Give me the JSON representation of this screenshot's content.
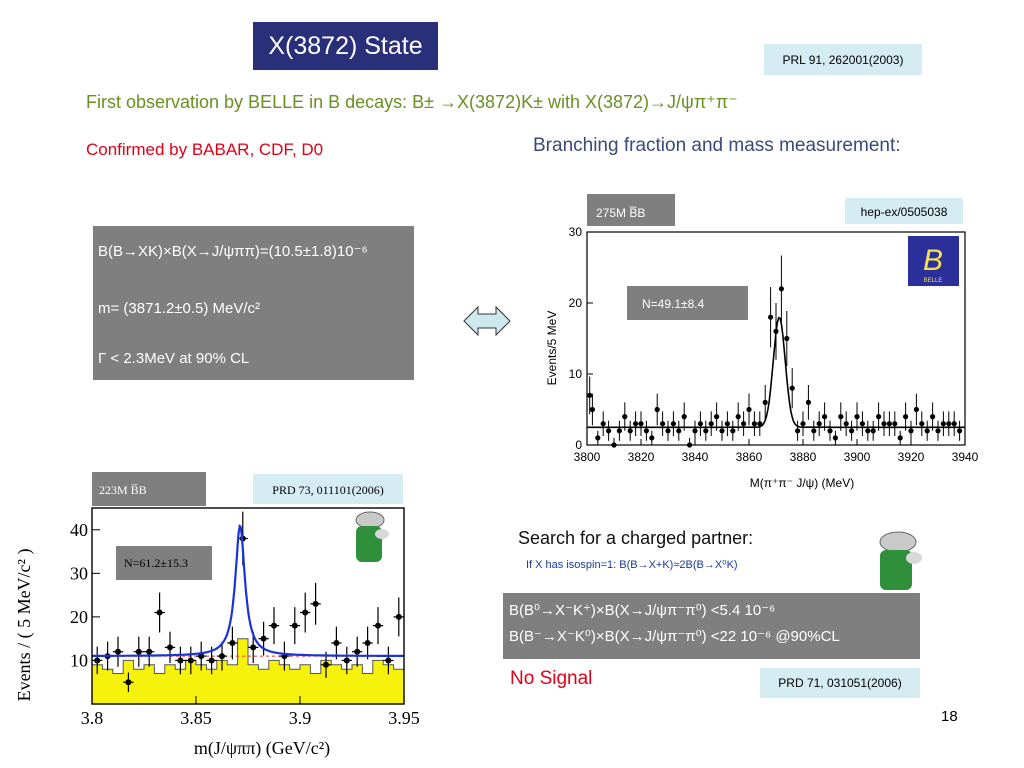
{
  "slide": {
    "title": "X(3872) State",
    "ref_top": "PRL 91, 262001(2003)",
    "observation": "First observation by BELLE in B decays: B± →X(3872)K± with X(3872)→J/ψπ⁺π⁻",
    "confirmed": "Confirmed by BABAR, CDF, D0",
    "branching": "Branching fraction and mass measurement:",
    "results": [
      "B(B→XK)×B(X→J/ψππ)=(10.5±1.8)10⁻⁶",
      "m= (3871.2±0.5) MeV/c²",
      "Γ < 2.3MeV at 90% CL"
    ],
    "search_title": "Search for a charged partner:",
    "search_sub": "If X has isospin=1: B(B→X+K)≈2B(B→X⁰K)",
    "charged_results": [
      "B(B⁰→X⁻K⁺)×B(X→J/ψπ⁻π⁰) <5.4 10⁻⁶",
      "B(B⁻→X⁻K⁰)×B(X→J/ψπ⁻π⁰) <22 10⁻⁶ @90%CL"
    ],
    "no_signal": "No Signal",
    "ref_bottom": "PRD 71, 031051(2006)",
    "page_number": "18",
    "colors": {
      "title_bg": "#2a2f7a",
      "ref_bg": "#d6ecf3",
      "green_text": "#6a8f23",
      "red_text": "#e0001a",
      "gray_box": "#7f7f7f",
      "arrow": "#cde9ee"
    },
    "icons": [
      "double-arrow-icon",
      "belle-logo-icon",
      "babar-elephant-icon"
    ]
  },
  "chart_data": [
    {
      "type": "scatter",
      "experiment_tag": "275M B̅B",
      "ref": "hep-ex/0505038",
      "logo_text": "BELLE",
      "annotation": "N=49.1±8.4",
      "xlabel": "M(π⁺π⁻ J/ψ) (MeV)",
      "ylabel": "Events/5 MeV",
      "xlim": [
        3800,
        3940
      ],
      "ylim": [
        0,
        30
      ],
      "x_ticks": [
        3800,
        3820,
        3840,
        3860,
        3880,
        3900,
        3920,
        3940
      ],
      "y_ticks": [
        0,
        10,
        20,
        30
      ],
      "grid": false,
      "points": [
        [
          3801,
          7
        ],
        [
          3802,
          5
        ],
        [
          3804,
          1
        ],
        [
          3806,
          3
        ],
        [
          3808,
          2
        ],
        [
          3810,
          0
        ],
        [
          3812,
          2
        ],
        [
          3814,
          4
        ],
        [
          3816,
          2
        ],
        [
          3818,
          3
        ],
        [
          3820,
          3
        ],
        [
          3822,
          2
        ],
        [
          3824,
          1
        ],
        [
          3826,
          5
        ],
        [
          3828,
          3
        ],
        [
          3830,
          2
        ],
        [
          3832,
          3
        ],
        [
          3834,
          2
        ],
        [
          3836,
          4
        ],
        [
          3838,
          0
        ],
        [
          3840,
          2
        ],
        [
          3842,
          3
        ],
        [
          3844,
          2
        ],
        [
          3846,
          3
        ],
        [
          3848,
          4
        ],
        [
          3850,
          2
        ],
        [
          3852,
          3
        ],
        [
          3854,
          2
        ],
        [
          3856,
          4
        ],
        [
          3858,
          3
        ],
        [
          3860,
          5
        ],
        [
          3862,
          3
        ],
        [
          3864,
          3
        ],
        [
          3866,
          6
        ],
        [
          3868,
          18
        ],
        [
          3870,
          16
        ],
        [
          3872,
          22
        ],
        [
          3874,
          15
        ],
        [
          3876,
          8
        ],
        [
          3878,
          2
        ],
        [
          3880,
          3
        ],
        [
          3882,
          6
        ],
        [
          3884,
          2
        ],
        [
          3886,
          3
        ],
        [
          3888,
          4
        ],
        [
          3890,
          2
        ],
        [
          3892,
          1
        ],
        [
          3894,
          4
        ],
        [
          3896,
          3
        ],
        [
          3898,
          2
        ],
        [
          3900,
          4
        ],
        [
          3902,
          3
        ],
        [
          3904,
          2
        ],
        [
          3906,
          2
        ],
        [
          3908,
          4
        ],
        [
          3910,
          3
        ],
        [
          3912,
          3
        ],
        [
          3914,
          3
        ],
        [
          3916,
          1
        ],
        [
          3918,
          4
        ],
        [
          3920,
          2
        ],
        [
          3922,
          5
        ],
        [
          3924,
          3
        ],
        [
          3926,
          2
        ],
        [
          3928,
          4
        ],
        [
          3930,
          2
        ],
        [
          3932,
          3
        ],
        [
          3934,
          3
        ],
        [
          3936,
          3
        ],
        [
          3938,
          2
        ]
      ],
      "fit": {
        "background": 2.5,
        "peak_mean": 3871.2,
        "peak_sigma": 2.2,
        "peak_height": 15.5
      }
    },
    {
      "type": "bar",
      "experiment_tag": "223M B̅B",
      "ref": "PRD 73, 011101(2006)",
      "annotation": "N=61.2±15.3",
      "xlabel": "m(J/ψππ) (GeV/c²)",
      "ylabel": "Events / ( 5 MeV/c² )",
      "xlim": [
        3.8,
        3.95
      ],
      "ylim": [
        0,
        45
      ],
      "x_ticks": [
        3.8,
        3.85,
        3.9,
        3.95
      ],
      "x_tick_labels": [
        "3.8",
        "3.85",
        "3.9",
        "3.95"
      ],
      "y_ticks": [
        10,
        20,
        30,
        40
      ],
      "grid": false,
      "bin_edges": [
        3.8,
        3.805,
        3.81,
        3.815,
        3.82,
        3.825,
        3.83,
        3.835,
        3.84,
        3.845,
        3.85,
        3.855,
        3.86,
        3.865,
        3.87,
        3.875,
        3.88,
        3.885,
        3.89,
        3.895,
        3.9,
        3.905,
        3.91,
        3.915,
        3.92,
        3.925,
        3.93,
        3.935,
        3.94,
        3.945,
        3.95
      ],
      "background_histogram": [
        9,
        8,
        7,
        10,
        8,
        9,
        7,
        9,
        8,
        10,
        9,
        8,
        10,
        9,
        15,
        9,
        8,
        10,
        9,
        8,
        9,
        7,
        10,
        9,
        8,
        9,
        7,
        10,
        9,
        8
      ],
      "data_points": [
        [
          3.8025,
          10
        ],
        [
          3.8075,
          11
        ],
        [
          3.8125,
          12
        ],
        [
          3.8175,
          5
        ],
        [
          3.8225,
          12
        ],
        [
          3.8275,
          12
        ],
        [
          3.8325,
          21
        ],
        [
          3.8375,
          13
        ],
        [
          3.8425,
          10
        ],
        [
          3.8475,
          10
        ],
        [
          3.8525,
          11
        ],
        [
          3.8575,
          10
        ],
        [
          3.8625,
          11
        ],
        [
          3.8675,
          14
        ],
        [
          3.8725,
          38
        ],
        [
          3.8775,
          13
        ],
        [
          3.8825,
          15
        ],
        [
          3.8875,
          18
        ],
        [
          3.8925,
          11
        ],
        [
          3.8975,
          18
        ],
        [
          3.9025,
          21
        ],
        [
          3.9075,
          23
        ],
        [
          3.9125,
          9
        ],
        [
          3.9175,
          14
        ],
        [
          3.9225,
          10
        ],
        [
          3.9275,
          12
        ],
        [
          3.9325,
          14
        ],
        [
          3.9375,
          18
        ],
        [
          3.9425,
          10
        ],
        [
          3.9475,
          20
        ]
      ],
      "fit": {
        "background": 11,
        "peak_mean": 3.8712,
        "peak_width": 0.0028,
        "peak_height": 30
      }
    }
  ]
}
